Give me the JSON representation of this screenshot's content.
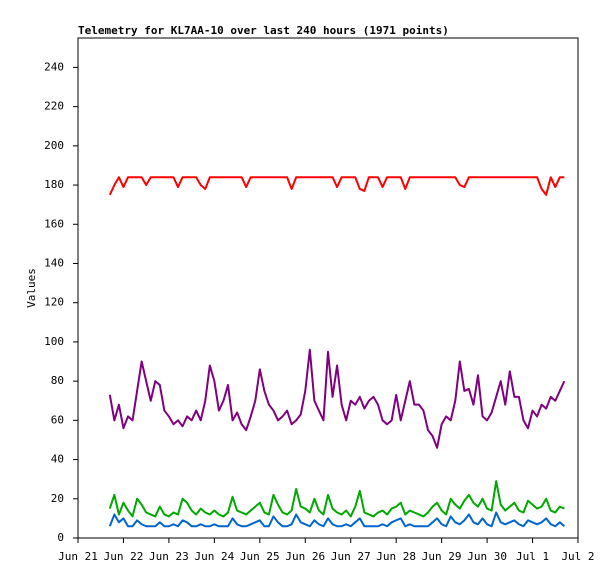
{
  "chart_data": {
    "type": "line",
    "title": "Telemetry for KL7AA-10 over last 240 hours (1971 points)",
    "y_label": "Values",
    "xlim": [
      0,
      11
    ],
    "xticks": [
      {
        "value": 0,
        "label": "Jun 21"
      },
      {
        "value": 1,
        "label": "Jun 22"
      },
      {
        "value": 2,
        "label": "Jun 23"
      },
      {
        "value": 3,
        "label": "Jun 24"
      },
      {
        "value": 4,
        "label": "Jun 25"
      },
      {
        "value": 5,
        "label": "Jun 26"
      },
      {
        "value": 6,
        "label": "Jun 27"
      },
      {
        "value": 7,
        "label": "Jun 28"
      },
      {
        "value": 8,
        "label": "Jun 29"
      },
      {
        "value": 9,
        "label": "Jun 30"
      },
      {
        "value": 10,
        "label": "Jul 1"
      },
      {
        "value": 11,
        "label": "Jul 2"
      }
    ],
    "ylim": [
      0,
      255
    ],
    "yticks": [
      0,
      20,
      40,
      60,
      80,
      100,
      120,
      140,
      160,
      180,
      200,
      220,
      240
    ],
    "x": [
      0.7,
      0.8,
      0.9,
      1.0,
      1.1,
      1.2,
      1.3,
      1.4,
      1.5,
      1.6,
      1.7,
      1.8,
      1.9,
      2.0,
      2.1,
      2.2,
      2.3,
      2.4,
      2.5,
      2.6,
      2.7,
      2.8,
      2.9,
      3.0,
      3.1,
      3.2,
      3.3,
      3.4,
      3.5,
      3.6,
      3.7,
      3.8,
      3.9,
      4.0,
      4.1,
      4.2,
      4.3,
      4.4,
      4.5,
      4.6,
      4.7,
      4.8,
      4.9,
      5.0,
      5.1,
      5.2,
      5.3,
      5.4,
      5.5,
      5.6,
      5.7,
      5.8,
      5.9,
      6.0,
      6.1,
      6.2,
      6.3,
      6.4,
      6.5,
      6.6,
      6.7,
      6.8,
      6.9,
      7.0,
      7.1,
      7.2,
      7.3,
      7.4,
      7.5,
      7.6,
      7.7,
      7.8,
      7.9,
      8.0,
      8.1,
      8.2,
      8.3,
      8.4,
      8.5,
      8.6,
      8.7,
      8.8,
      8.9,
      9.0,
      9.1,
      9.2,
      9.3,
      9.4,
      9.5,
      9.6,
      9.7,
      9.8,
      9.9,
      10.0,
      10.1,
      10.2,
      10.3,
      10.4,
      10.5,
      10.6,
      10.7
    ],
    "series": [
      {
        "color": "#ff0000",
        "values": [
          175,
          180,
          184,
          179,
          184,
          184,
          184,
          184,
          180,
          184,
          184,
          184,
          184,
          184,
          184,
          179,
          184,
          184,
          184,
          184,
          180,
          178,
          184,
          184,
          184,
          184,
          184,
          184,
          184,
          184,
          179,
          184,
          184,
          184,
          184,
          184,
          184,
          184,
          184,
          184,
          178,
          184,
          184,
          184,
          184,
          184,
          184,
          184,
          184,
          184,
          179,
          184,
          184,
          184,
          184,
          178,
          177,
          184,
          184,
          184,
          179,
          184,
          184,
          184,
          184,
          178,
          184,
          184,
          184,
          184,
          184,
          184,
          184,
          184,
          184,
          184,
          184,
          180,
          179,
          184,
          184,
          184,
          184,
          184,
          184,
          184,
          184,
          184,
          184,
          184,
          184,
          184,
          184,
          184,
          184,
          178,
          175,
          184,
          179,
          184,
          184
        ]
      },
      {
        "color": "#800080",
        "values": [
          73,
          60,
          68,
          56,
          62,
          60,
          75,
          90,
          80,
          70,
          80,
          78,
          65,
          62,
          58,
          60,
          57,
          62,
          60,
          65,
          60,
          70,
          88,
          80,
          65,
          70,
          78,
          60,
          64,
          58,
          55,
          62,
          70,
          86,
          75,
          68,
          65,
          60,
          62,
          65,
          58,
          60,
          63,
          75,
          96,
          70,
          65,
          60,
          95,
          72,
          88,
          68,
          60,
          70,
          68,
          72,
          66,
          70,
          72,
          68,
          60,
          58,
          60,
          73,
          60,
          70,
          80,
          68,
          68,
          65,
          55,
          52,
          46,
          58,
          62,
          60,
          70,
          90,
          75,
          76,
          68,
          83,
          62,
          60,
          64,
          72,
          80,
          68,
          85,
          72,
          72,
          60,
          56,
          65,
          62,
          68,
          66,
          72,
          70,
          75,
          80
        ]
      },
      {
        "color": "#00a800",
        "values": [
          15,
          22,
          12,
          18,
          14,
          11,
          20,
          17,
          13,
          12,
          11,
          16,
          12,
          11,
          13,
          12,
          20,
          18,
          14,
          12,
          15,
          13,
          12,
          14,
          12,
          11,
          13,
          21,
          14,
          13,
          12,
          14,
          16,
          18,
          13,
          12,
          22,
          17,
          13,
          12,
          14,
          25,
          16,
          15,
          13,
          20,
          14,
          12,
          22,
          15,
          13,
          12,
          14,
          11,
          16,
          24,
          13,
          12,
          11,
          13,
          14,
          12,
          15,
          16,
          18,
          12,
          14,
          13,
          12,
          11,
          13,
          16,
          18,
          14,
          12,
          20,
          17,
          15,
          19,
          22,
          18,
          16,
          20,
          15,
          14,
          29,
          17,
          14,
          16,
          18,
          14,
          13,
          19,
          17,
          15,
          16,
          20,
          14,
          13,
          16,
          15
        ]
      },
      {
        "color": "#0066cc",
        "values": [
          6,
          12,
          8,
          10,
          6,
          6,
          9,
          7,
          6,
          6,
          6,
          8,
          6,
          6,
          7,
          6,
          9,
          8,
          6,
          6,
          7,
          6,
          6,
          7,
          6,
          6,
          6,
          10,
          7,
          6,
          6,
          7,
          8,
          9,
          6,
          6,
          11,
          8,
          6,
          6,
          7,
          12,
          8,
          7,
          6,
          9,
          7,
          6,
          10,
          7,
          6,
          6,
          7,
          6,
          8,
          10,
          6,
          6,
          6,
          6,
          7,
          6,
          8,
          9,
          10,
          6,
          7,
          6,
          6,
          6,
          6,
          8,
          10,
          7,
          6,
          11,
          8,
          7,
          9,
          12,
          8,
          7,
          10,
          7,
          6,
          13,
          8,
          7,
          8,
          9,
          7,
          6,
          9,
          8,
          7,
          8,
          10,
          7,
          6,
          8,
          6
        ]
      }
    ]
  }
}
